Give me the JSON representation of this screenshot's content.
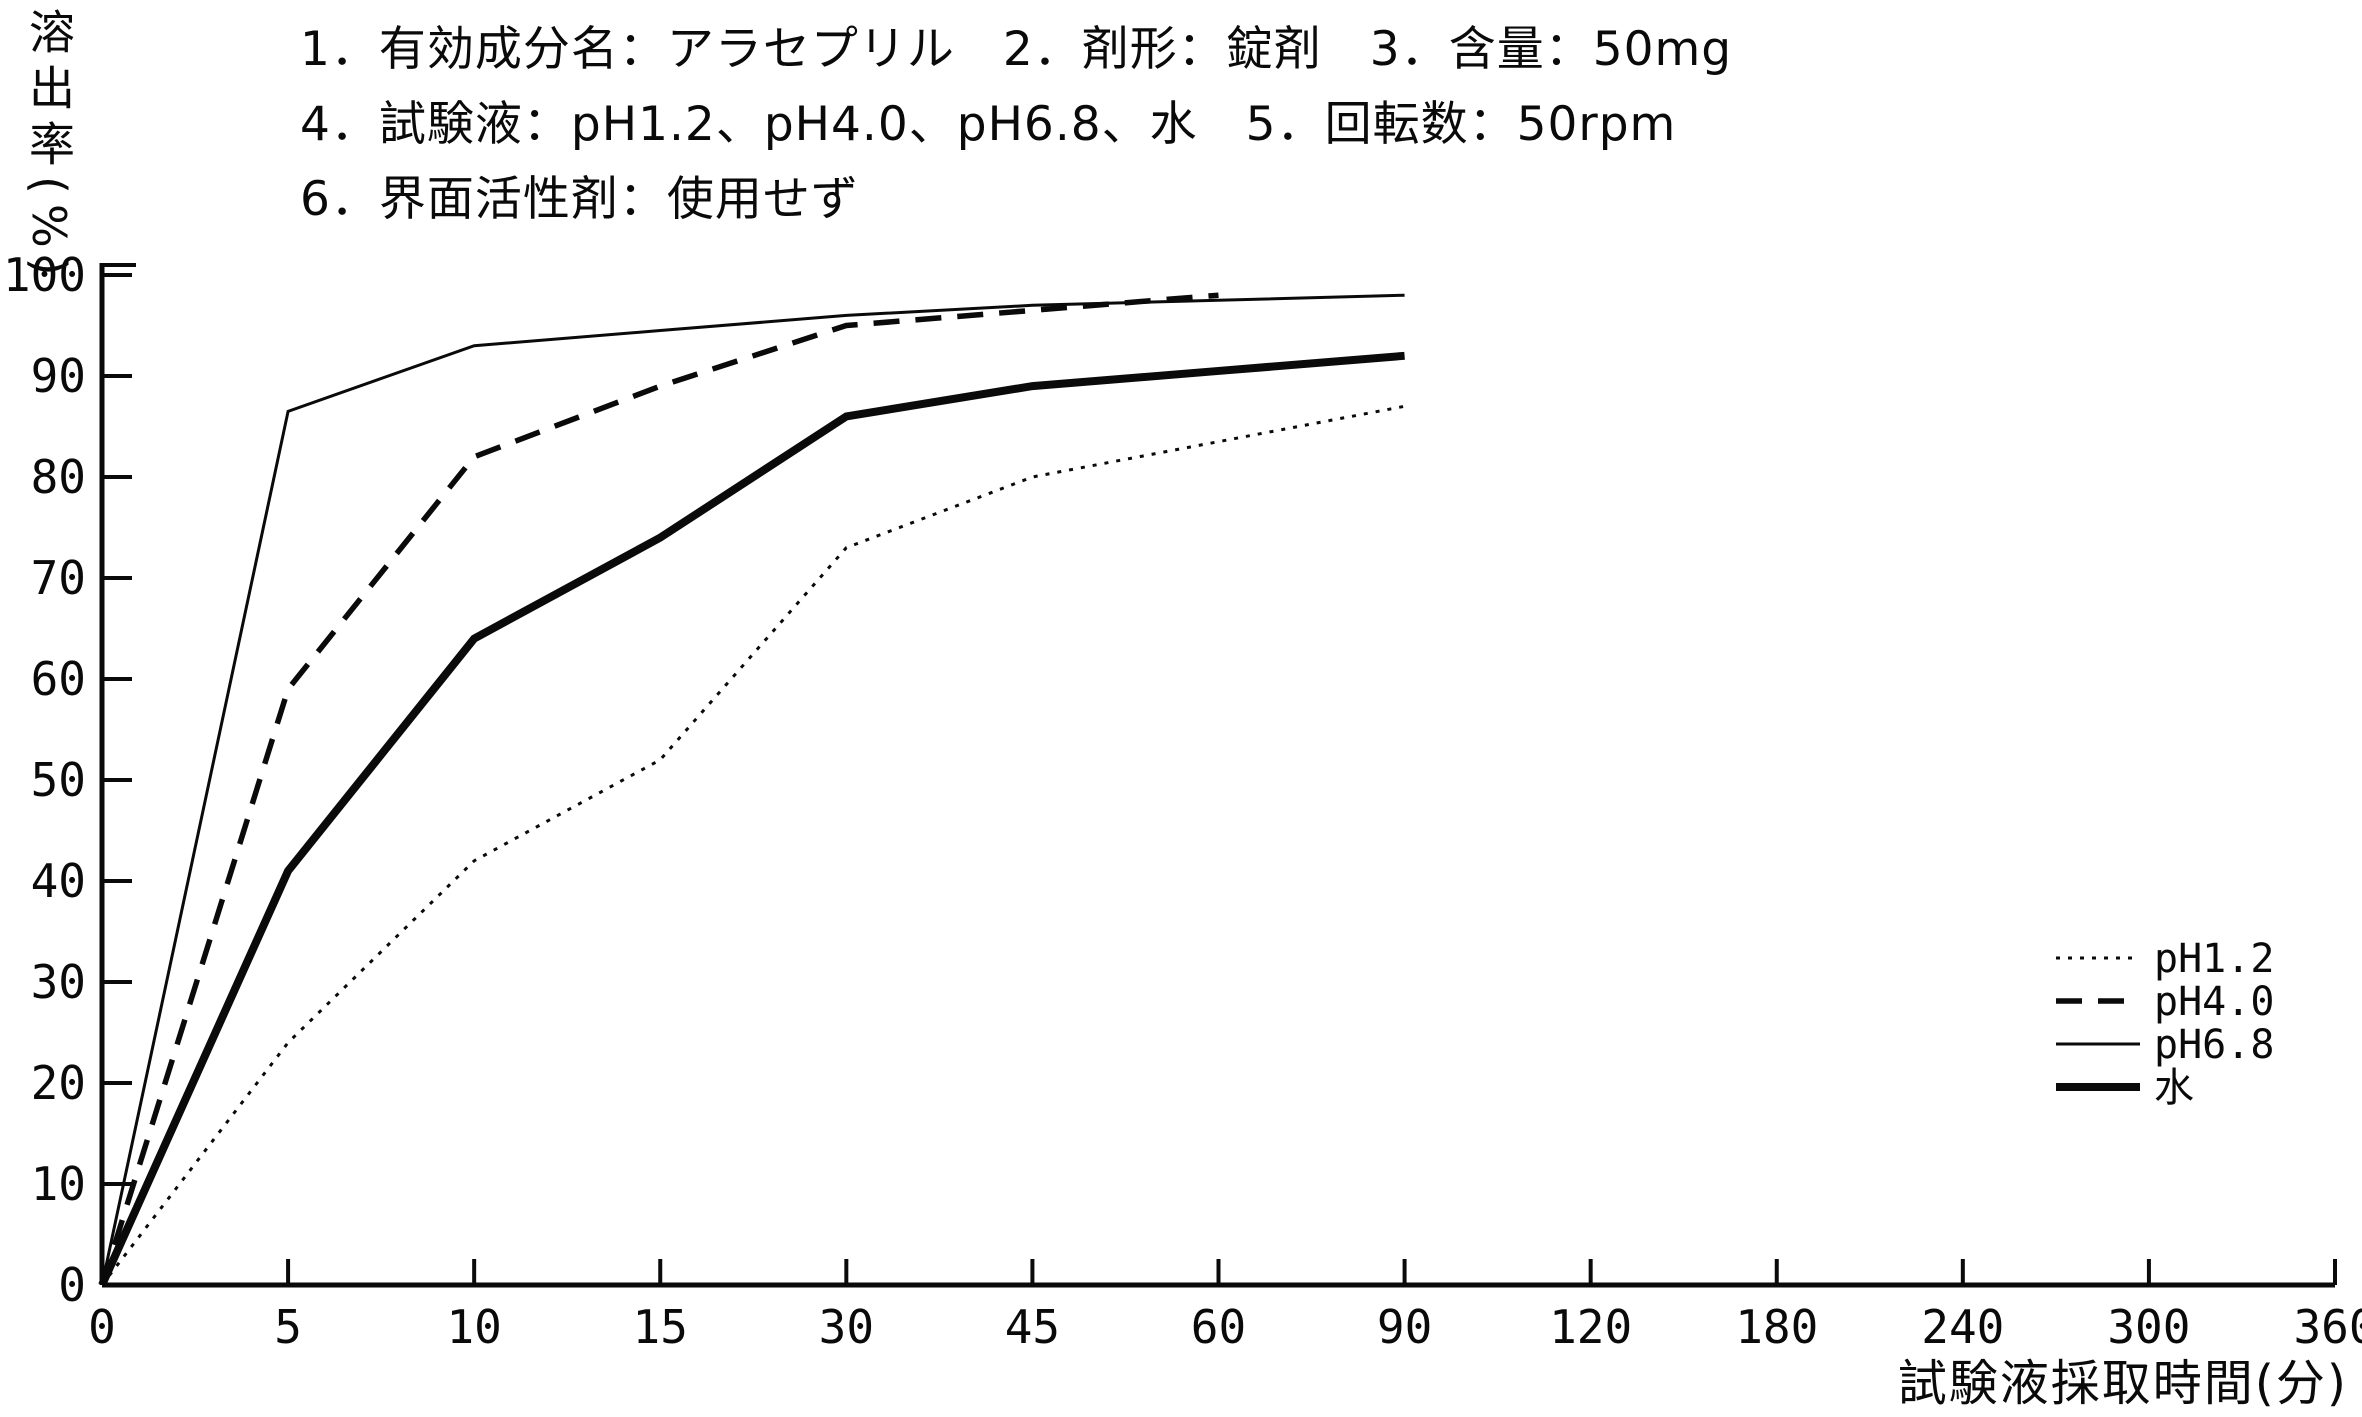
{
  "header": {
    "line1": "1．有効成分名：アラセプリル　2．剤形：錠剤　3．含量：50mg",
    "line2": "4．試験液：pH1.2、pH4.0、pH6.8、水　5．回転数：50rpm",
    "line3": "6．界面活性剤：使用せず"
  },
  "chart_data": {
    "type": "line",
    "title": "",
    "xlabel": "試験液採取時間(分)",
    "ylabel": "溶出率(%)",
    "x_ticks": [
      0,
      5,
      10,
      15,
      30,
      45,
      60,
      90,
      120,
      180,
      240,
      300,
      360
    ],
    "x_tick_spacing": "equal-categorical",
    "y_ticks": [
      0,
      10,
      20,
      30,
      40,
      50,
      60,
      70,
      80,
      90,
      100
    ],
    "ylim": [
      0,
      100
    ],
    "grid": false,
    "line_color": "#0a0a0a",
    "legend_position": "right-middle",
    "series": [
      {
        "name": "pH1.2",
        "style": "dotted",
        "weight": "thin",
        "x": [
          0,
          5,
          10,
          15,
          30,
          45,
          60,
          90
        ],
        "y": [
          0,
          24,
          42,
          52,
          73,
          80,
          83.5,
          87
        ]
      },
      {
        "name": "pH4.0",
        "style": "dashed",
        "weight": "medium",
        "x": [
          0,
          5,
          10,
          15,
          30,
          45,
          60
        ],
        "y": [
          0,
          59,
          82,
          89,
          95,
          96.5,
          98
        ]
      },
      {
        "name": "pH6.8",
        "style": "solid",
        "weight": "thin",
        "x": [
          0,
          5,
          10,
          15,
          30,
          45,
          60,
          90
        ],
        "y": [
          0,
          86.5,
          93,
          94.5,
          96,
          97,
          97.5,
          98
        ]
      },
      {
        "name": "水",
        "style": "solid",
        "weight": "thick",
        "x": [
          0,
          5,
          10,
          15,
          30,
          45,
          60,
          90
        ],
        "y": [
          0,
          41,
          64,
          74,
          86,
          89,
          90.5,
          92
        ]
      }
    ]
  }
}
